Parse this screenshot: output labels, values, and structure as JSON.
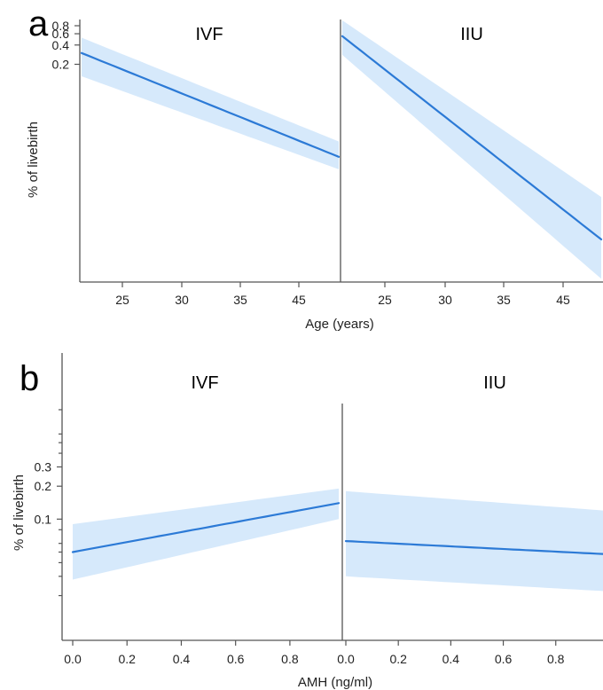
{
  "colors": {
    "band": "#d6e9fb",
    "line": "#2c7ad6",
    "axis": "#555555"
  },
  "chart_data": [
    {
      "panel": "a",
      "type": "line",
      "xlabel": "Age (years)",
      "ylabel": "% of livebirth",
      "y_scale": "log",
      "y_ticks": [
        0.8,
        0.6,
        0.4,
        0.2
      ],
      "y_tick_labels": [
        "0.8",
        "0.6",
        "0.4",
        "0.2"
      ],
      "x_ticks": [
        25,
        30,
        35,
        45
      ],
      "x_tick_labels": [
        "25",
        "30",
        "35",
        "45"
      ],
      "facets": [
        {
          "title": "IVF",
          "x": [
            21.5,
            48.5
          ],
          "y": [
            0.3,
            0.0072
          ],
          "lower": [
            0.13,
            0.0046
          ],
          "upper": [
            0.52,
            0.0125
          ]
        },
        {
          "title": "IIU",
          "x": [
            21.5,
            48.5
          ],
          "y": [
            0.55,
            0.00037
          ],
          "lower": [
            0.28,
            9e-05
          ],
          "upper": [
            0.97,
            0.0017
          ]
        }
      ]
    },
    {
      "panel": "b",
      "type": "line",
      "xlabel": "AMH (ng/ml)",
      "ylabel": "% of livebirth",
      "y_scale": "log",
      "y_ticks": [
        0.3,
        0.2,
        0.1
      ],
      "y_tick_labels": [
        "0.3",
        "0.2",
        "0.1"
      ],
      "x_ticks": [
        0.0,
        0.2,
        0.4,
        0.6,
        0.8
      ],
      "x_tick_labels": [
        "0.0",
        "0.2",
        "0.4",
        "0.6",
        "0.8"
      ],
      "facets": [
        {
          "title": "IVF",
          "x": [
            0.0,
            0.98
          ],
          "y": [
            0.05,
            0.14
          ],
          "lower": [
            0.028,
            0.1
          ],
          "upper": [
            0.09,
            0.19
          ]
        },
        {
          "title": "IIU",
          "x": [
            0.0,
            0.98
          ],
          "y": [
            0.063,
            0.048
          ],
          "lower": [
            0.03,
            0.022
          ],
          "upper": [
            0.18,
            0.12
          ]
        }
      ]
    }
  ]
}
